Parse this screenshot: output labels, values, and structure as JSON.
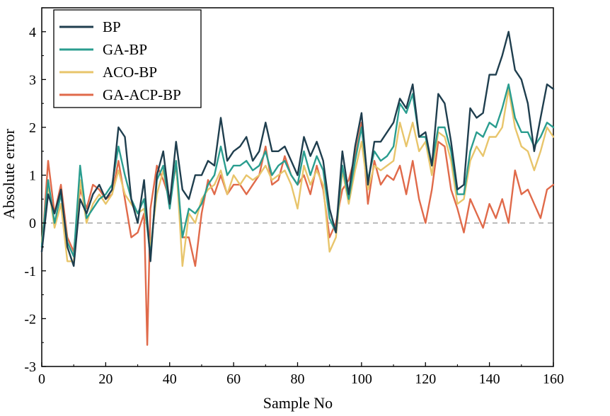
{
  "chart_data": {
    "type": "line",
    "title": "",
    "xlabel": "Sample No",
    "ylabel": "Absolute error",
    "xlim": [
      0,
      160
    ],
    "ylim": [
      -3,
      4.5
    ],
    "xticks": [
      0,
      20,
      40,
      60,
      80,
      100,
      120,
      140,
      160
    ],
    "yticks": [
      -3,
      -2,
      -1,
      0,
      1,
      2,
      3,
      4
    ],
    "reference_line": {
      "y": 0,
      "style": "dashed"
    },
    "grid": false,
    "legend_position": "top-left",
    "series": [
      {
        "name": "BP",
        "color": "#1f3e4e",
        "x": [
          0,
          2,
          4,
          6,
          8,
          10,
          12,
          14,
          16,
          18,
          20,
          22,
          24,
          26,
          28,
          30,
          32,
          34,
          36,
          38,
          40,
          42,
          44,
          46,
          48,
          50,
          52,
          54,
          56,
          58,
          60,
          62,
          64,
          66,
          68,
          70,
          72,
          74,
          76,
          78,
          80,
          82,
          84,
          86,
          88,
          90,
          92,
          94,
          96,
          98,
          100,
          102,
          104,
          106,
          108,
          110,
          112,
          114,
          116,
          118,
          120,
          122,
          124,
          126,
          128,
          130,
          132,
          134,
          136,
          138,
          140,
          142,
          144,
          146,
          148,
          150,
          152,
          154,
          156,
          158,
          160
        ],
        "values": [
          -0.6,
          0.6,
          0.2,
          0.7,
          -0.5,
          -0.9,
          0.5,
          0.2,
          0.6,
          0.8,
          0.5,
          0.7,
          2.0,
          1.8,
          0.5,
          0.0,
          0.9,
          -0.8,
          1.0,
          1.5,
          0.4,
          1.7,
          0.7,
          0.5,
          1.0,
          1.0,
          1.3,
          1.2,
          2.2,
          1.3,
          1.5,
          1.6,
          1.8,
          1.3,
          1.5,
          2.1,
          1.5,
          1.5,
          1.6,
          1.3,
          1.0,
          1.8,
          1.4,
          1.7,
          1.3,
          0.3,
          -0.2,
          1.5,
          0.6,
          1.6,
          2.3,
          0.8,
          1.7,
          1.7,
          1.9,
          2.1,
          2.6,
          2.4,
          2.9,
          1.8,
          1.9,
          1.2,
          2.7,
          2.5,
          1.7,
          0.7,
          0.8,
          2.4,
          2.2,
          2.3,
          3.1,
          3.1,
          3.5,
          4.0,
          3.2,
          3.0,
          2.5,
          1.5,
          2.2,
          2.9,
          2.8
        ]
      },
      {
        "name": "GA-BP",
        "color": "#2a9d8f",
        "x": [
          0,
          2,
          4,
          6,
          8,
          10,
          12,
          14,
          16,
          18,
          20,
          22,
          24,
          26,
          28,
          30,
          32,
          34,
          36,
          38,
          40,
          42,
          44,
          46,
          48,
          50,
          52,
          54,
          56,
          58,
          60,
          62,
          64,
          66,
          68,
          70,
          72,
          74,
          76,
          78,
          80,
          82,
          84,
          86,
          88,
          90,
          92,
          94,
          96,
          98,
          100,
          102,
          104,
          106,
          108,
          110,
          112,
          114,
          116,
          118,
          120,
          122,
          124,
          126,
          128,
          130,
          132,
          134,
          136,
          138,
          140,
          142,
          144,
          146,
          148,
          150,
          152,
          154,
          156,
          158,
          160
        ],
        "values": [
          -0.5,
          0.9,
          0.0,
          0.6,
          -0.4,
          -0.7,
          1.2,
          0.1,
          0.3,
          0.5,
          0.6,
          0.8,
          1.6,
          1.0,
          0.5,
          0.2,
          0.5,
          -0.7,
          0.9,
          1.2,
          0.3,
          1.3,
          -0.3,
          0.3,
          0.2,
          0.4,
          0.8,
          1.0,
          1.6,
          1.0,
          1.2,
          1.2,
          1.3,
          1.1,
          1.2,
          1.5,
          1.0,
          1.2,
          1.3,
          1.0,
          0.8,
          1.5,
          1.0,
          1.4,
          1.1,
          0.1,
          -0.2,
          1.2,
          0.5,
          1.3,
          2.0,
          0.9,
          1.5,
          1.3,
          1.4,
          1.6,
          2.5,
          2.3,
          2.7,
          1.8,
          1.8,
          1.2,
          2.0,
          2.0,
          1.5,
          0.6,
          0.6,
          1.5,
          1.9,
          1.8,
          2.1,
          2.0,
          2.4,
          2.9,
          2.2,
          1.9,
          1.9,
          1.6,
          1.8,
          2.1,
          2.0
        ]
      },
      {
        "name": "ACO-BP",
        "color": "#e8c56b",
        "x": [
          0,
          2,
          4,
          6,
          8,
          10,
          12,
          14,
          16,
          18,
          20,
          22,
          24,
          26,
          28,
          30,
          32,
          34,
          36,
          38,
          40,
          42,
          44,
          46,
          48,
          50,
          52,
          54,
          56,
          58,
          60,
          62,
          64,
          66,
          68,
          70,
          72,
          74,
          76,
          78,
          80,
          82,
          84,
          86,
          88,
          90,
          92,
          94,
          96,
          98,
          100,
          102,
          104,
          106,
          108,
          110,
          112,
          114,
          116,
          118,
          120,
          122,
          124,
          126,
          128,
          130,
          132,
          134,
          136,
          138,
          140,
          142,
          144,
          146,
          148,
          150,
          152,
          154,
          156,
          158,
          160
        ],
        "values": [
          -0.4,
          0.8,
          -0.1,
          0.4,
          -0.8,
          -0.8,
          0.9,
          0.0,
          0.4,
          0.6,
          0.4,
          0.6,
          1.1,
          0.6,
          0.4,
          0.2,
          0.3,
          -0.5,
          0.6,
          1.1,
          0.4,
          1.3,
          -0.9,
          0.2,
          0.0,
          0.5,
          0.7,
          0.8,
          1.1,
          0.6,
          1.0,
          0.8,
          1.0,
          0.9,
          1.0,
          1.2,
          0.9,
          1.0,
          1.1,
          0.8,
          0.3,
          1.2,
          0.8,
          1.1,
          0.8,
          -0.6,
          -0.3,
          1.1,
          0.4,
          1.1,
          1.7,
          0.7,
          1.2,
          1.1,
          1.2,
          1.3,
          2.1,
          1.6,
          2.1,
          1.5,
          1.7,
          1.0,
          1.9,
          1.8,
          1.3,
          0.4,
          0.5,
          1.3,
          1.6,
          1.4,
          1.8,
          1.8,
          2.0,
          2.8,
          2.0,
          1.6,
          1.5,
          1.1,
          1.5,
          2.0,
          1.8
        ]
      },
      {
        "name": "GA-ACP-BP",
        "color": "#e06a4a",
        "x": [
          0,
          2,
          4,
          6,
          8,
          10,
          12,
          14,
          16,
          18,
          20,
          22,
          24,
          26,
          28,
          30,
          32,
          33,
          34,
          36,
          38,
          40,
          42,
          44,
          46,
          48,
          50,
          52,
          54,
          56,
          58,
          60,
          62,
          64,
          66,
          68,
          70,
          72,
          74,
          76,
          78,
          80,
          82,
          84,
          86,
          88,
          90,
          92,
          94,
          96,
          98,
          100,
          102,
          104,
          106,
          108,
          110,
          112,
          114,
          116,
          118,
          120,
          122,
          124,
          126,
          128,
          130,
          132,
          134,
          136,
          138,
          140,
          142,
          144,
          146,
          148,
          150,
          152,
          154,
          156,
          158,
          160
        ],
        "values": [
          -0.6,
          1.3,
          0.2,
          0.8,
          -0.3,
          -0.6,
          0.7,
          0.3,
          0.8,
          0.7,
          0.5,
          0.6,
          1.3,
          0.5,
          -0.3,
          -0.2,
          0.2,
          -2.55,
          0.3,
          1.2,
          0.9,
          0.5,
          1.2,
          -0.3,
          -0.3,
          -0.9,
          0.2,
          0.9,
          0.6,
          1.0,
          0.6,
          0.8,
          0.8,
          0.6,
          0.8,
          1.0,
          1.6,
          0.8,
          0.9,
          1.4,
          1.0,
          0.8,
          1.0,
          0.6,
          1.2,
          0.7,
          -0.3,
          0.0,
          0.7,
          0.9,
          1.4,
          2.1,
          0.4,
          1.3,
          0.8,
          1.0,
          0.9,
          1.2,
          0.6,
          1.3,
          0.5,
          0.0,
          0.7,
          1.7,
          1.6,
          0.7,
          0.3,
          -0.2,
          0.5,
          0.2,
          -0.1,
          0.4,
          0.1,
          0.5,
          0.0,
          1.1,
          0.6,
          0.7,
          0.4,
          0.1,
          0.7,
          0.8
        ]
      }
    ]
  }
}
